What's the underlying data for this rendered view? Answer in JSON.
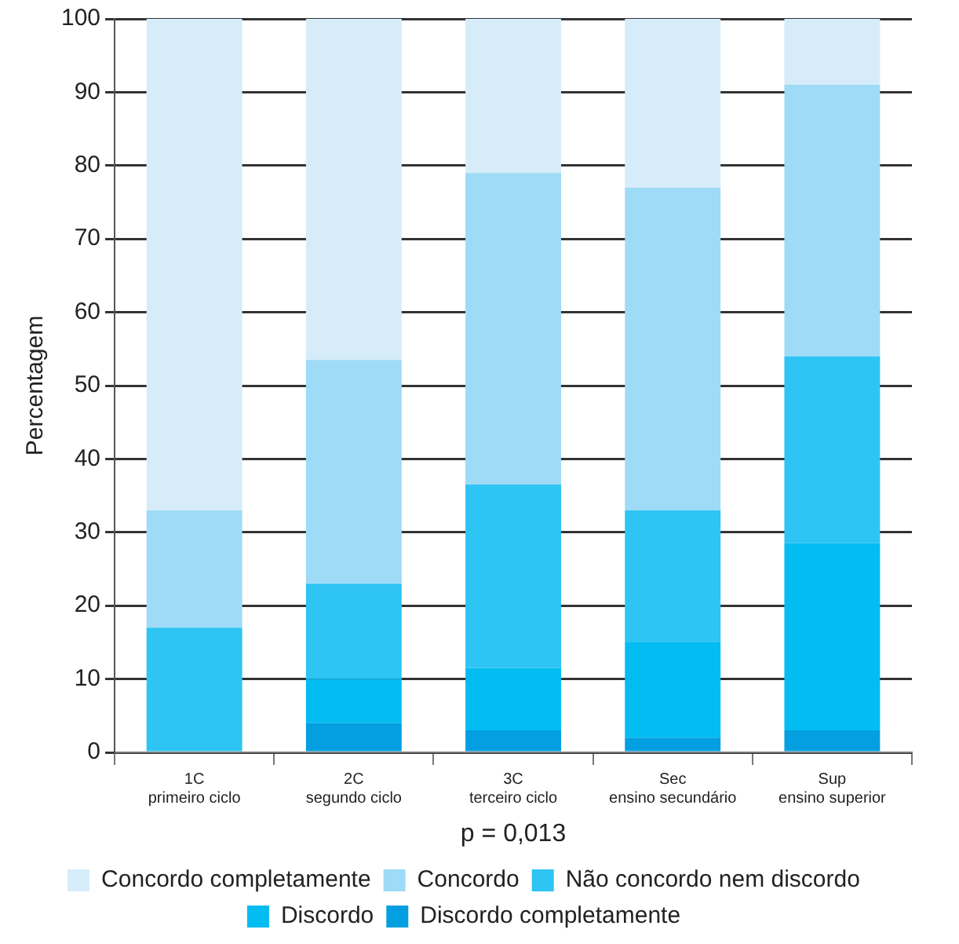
{
  "chart_data": {
    "type": "bar",
    "stacked": true,
    "ylabel": "Percentagem",
    "categories": [
      "1C\nprimeiro ciclo",
      "2C\nsegundo ciclo",
      "3C\nterceiro ciclo",
      "Sec\nensino secundário",
      "Sup\nensino superior"
    ],
    "series": [
      {
        "name": "Discordo completamente",
        "color": "#039fe0",
        "values": [
          0,
          4,
          3,
          2,
          3
        ]
      },
      {
        "name": "Discordo",
        "color": "#03bcf2",
        "values": [
          0,
          6,
          8.5,
          13,
          25.5
        ]
      },
      {
        "name": "Não concordo nem discordo",
        "color": "#2ec4f4",
        "values": [
          17,
          13,
          25,
          18,
          25.5
        ]
      },
      {
        "name": "Concordo",
        "color": "#9edbf6",
        "values": [
          16,
          30.5,
          42.5,
          44,
          37
        ]
      },
      {
        "name": "Concordo completamente",
        "color": "#d6ecf9",
        "values": [
          67,
          46.5,
          21,
          23,
          9
        ]
      }
    ],
    "ylim": [
      0,
      100
    ],
    "yticks": [
      0,
      10,
      20,
      30,
      40,
      50,
      60,
      70,
      80,
      90,
      100
    ],
    "grid": "y",
    "legend": "bottom",
    "annotations": [
      "p = 0,013"
    ]
  }
}
